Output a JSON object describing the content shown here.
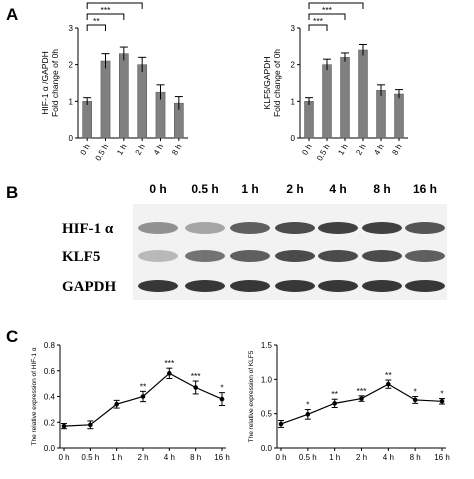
{
  "panels": {
    "a": "A",
    "b": "B",
    "c": "C"
  },
  "chart_data": [
    {
      "id": "a-left",
      "type": "bar",
      "categories": [
        "0 h",
        "0.5 h",
        "1 h",
        "2 h",
        "4 h",
        "8 h"
      ],
      "values": [
        1.0,
        2.1,
        2.3,
        2.0,
        1.25,
        0.95
      ],
      "errors": [
        0.1,
        0.2,
        0.18,
        0.2,
        0.2,
        0.18
      ],
      "ylabel_lines": [
        "HIF-1 α /GAPDH",
        "Fold change of 0h"
      ],
      "ylim": [
        0,
        3
      ],
      "yticks": [
        0,
        1,
        2,
        3
      ],
      "brackets": [
        {
          "from": 0,
          "to": 1,
          "label": "**"
        },
        {
          "from": 0,
          "to": 2,
          "label": "***"
        },
        {
          "from": 0,
          "to": 3,
          "label": "**"
        }
      ],
      "bar_color": "#808080"
    },
    {
      "id": "a-right",
      "type": "bar",
      "categories": [
        "0 h",
        "0.5 h",
        "1 h",
        "2 h",
        "4 h",
        "8 h"
      ],
      "values": [
        1.0,
        2.0,
        2.2,
        2.4,
        1.3,
        1.2
      ],
      "errors": [
        0.1,
        0.15,
        0.12,
        0.15,
        0.15,
        0.12
      ],
      "ylabel_lines": [
        "KLF5/GAPDH",
        "Fold change of 0h"
      ],
      "ylim": [
        0,
        3
      ],
      "yticks": [
        0,
        1,
        2,
        3
      ],
      "brackets": [
        {
          "from": 0,
          "to": 1,
          "label": "***"
        },
        {
          "from": 0,
          "to": 2,
          "label": "***"
        },
        {
          "from": 0,
          "to": 3,
          "label": "***"
        }
      ],
      "bar_color": "#808080"
    },
    {
      "id": "c-left",
      "type": "line",
      "x": [
        "0 h",
        "0.5 h",
        "1 h",
        "2 h",
        "4 h",
        "8 h",
        "16 h"
      ],
      "values": [
        0.17,
        0.18,
        0.34,
        0.4,
        0.58,
        0.47,
        0.38
      ],
      "errors": [
        0.02,
        0.03,
        0.03,
        0.04,
        0.04,
        0.05,
        0.05
      ],
      "labels": [
        "",
        "",
        "",
        "**",
        "***",
        "***",
        "*"
      ],
      "ylabel": "The relative expression of HIF-1 α",
      "ylim": [
        0,
        0.8
      ],
      "yticks": [
        "0.0",
        "0.2",
        "0.4",
        "0.6",
        "0.8"
      ]
    },
    {
      "id": "c-right",
      "type": "line",
      "x": [
        "0 h",
        "0.5 h",
        "1 h",
        "2 h",
        "4 h",
        "8 h",
        "16 h"
      ],
      "values": [
        0.35,
        0.49,
        0.65,
        0.72,
        0.93,
        0.7,
        0.68
      ],
      "errors": [
        0.05,
        0.07,
        0.06,
        0.04,
        0.06,
        0.05,
        0.04
      ],
      "labels": [
        "",
        "*",
        "**",
        "***",
        "**",
        "*",
        "*"
      ],
      "ylabel": "The relative expression of KLF5",
      "ylim": [
        0,
        1.5
      ],
      "yticks": [
        "0.0",
        "0.5",
        "1.0",
        "1.5"
      ]
    }
  ],
  "blot": {
    "lanes": [
      "0 h",
      "0.5 h",
      "1 h",
      "2 h",
      "4 h",
      "8 h",
      "16 h"
    ],
    "rows": [
      {
        "label": "HIF-1 α",
        "intensity": [
          0.45,
          0.35,
          0.7,
          0.8,
          0.85,
          0.85,
          0.75
        ]
      },
      {
        "label": "KLF5",
        "intensity": [
          0.25,
          0.6,
          0.7,
          0.8,
          0.8,
          0.8,
          0.7
        ]
      },
      {
        "label": "GAPDH",
        "intensity": [
          0.9,
          0.9,
          0.9,
          0.9,
          0.9,
          0.9,
          0.9
        ]
      }
    ]
  }
}
